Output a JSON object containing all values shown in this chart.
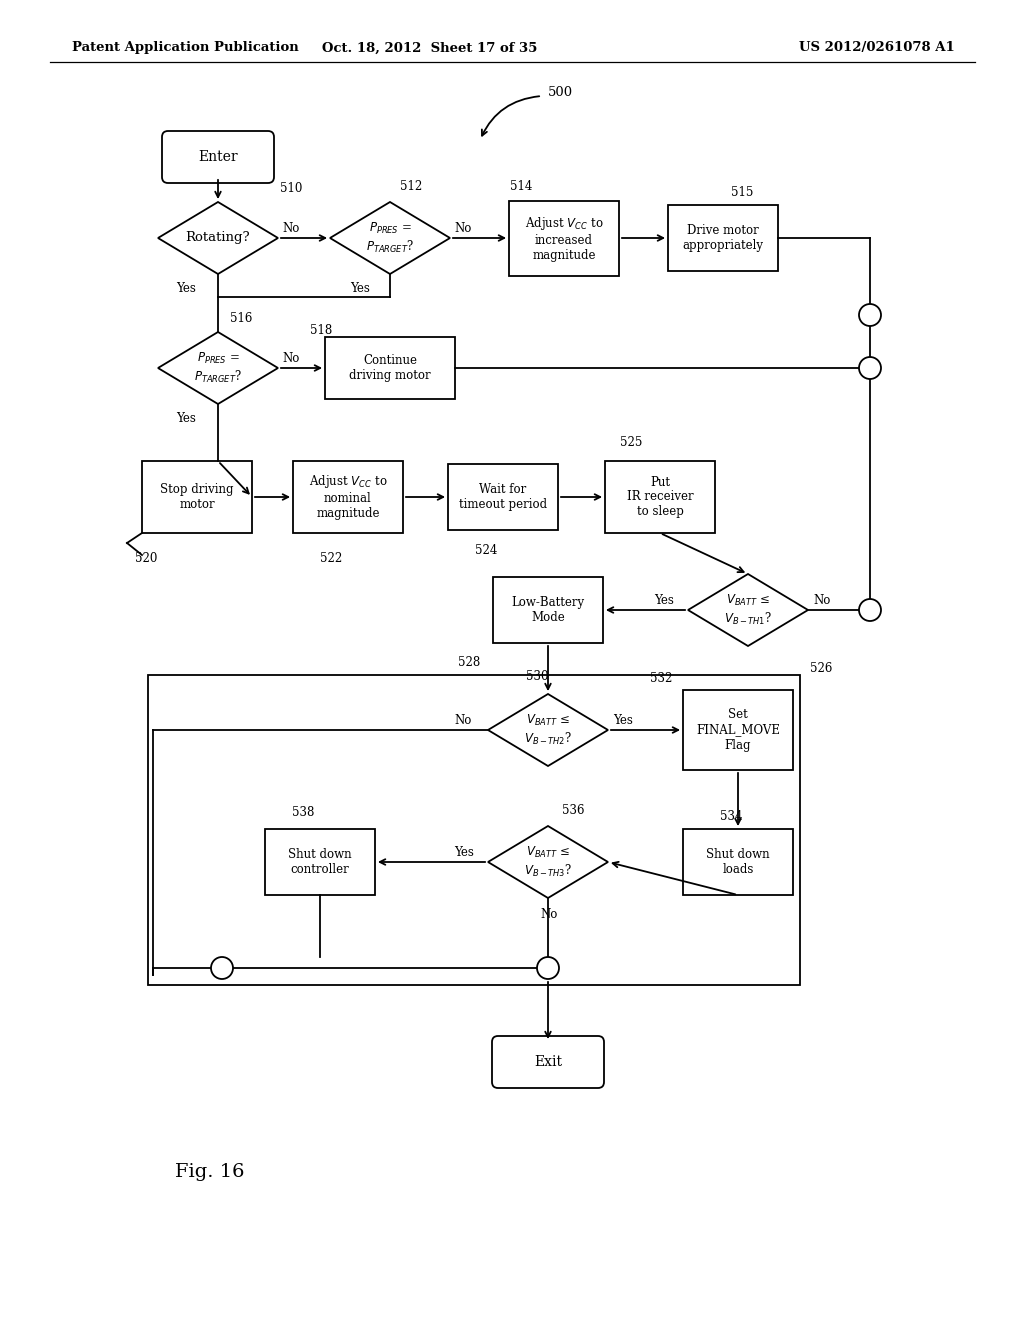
{
  "bg_color": "#ffffff",
  "header_left": "Patent Application Publication",
  "header_mid": "Oct. 18, 2012  Sheet 17 of 35",
  "header_right": "US 2012/0261078 A1"
}
